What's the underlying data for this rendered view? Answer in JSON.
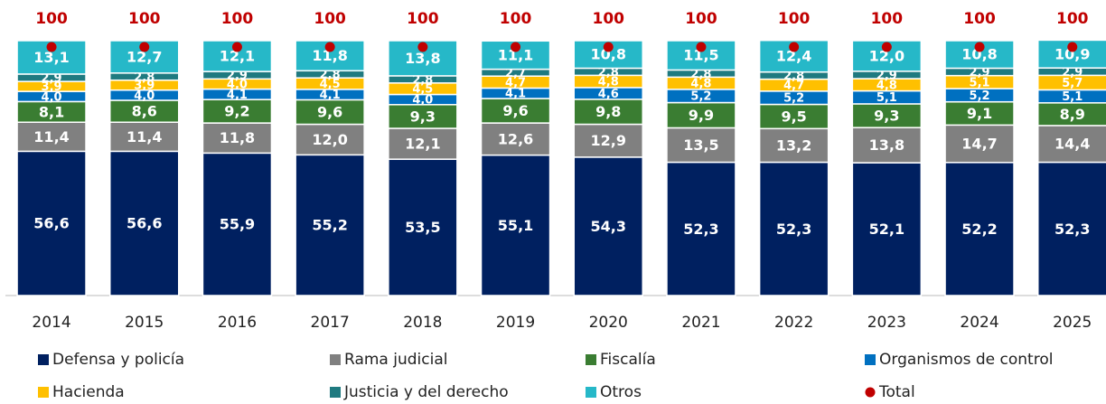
{
  "chart_data": {
    "type": "bar",
    "stacked": true,
    "categories": [
      "2014",
      "2015",
      "2016",
      "2017",
      "2018",
      "2019",
      "2020",
      "2021",
      "2022",
      "2023",
      "2024",
      "2025"
    ],
    "ylim": [
      0,
      100
    ],
    "series": [
      {
        "name": "Defensa y policía",
        "color": "#002060",
        "values": [
          56.6,
          56.6,
          55.9,
          55.2,
          53.5,
          55.1,
          54.3,
          52.3,
          52.3,
          52.1,
          52.2,
          52.3
        ],
        "value_labels": [
          "56,6",
          "56,6",
          "55,9",
          "55,2",
          "53,5",
          "55,1",
          "54,3",
          "52,3",
          "52,3",
          "52,1",
          "52,2",
          "52,3"
        ]
      },
      {
        "name": "Rama judicial",
        "color": "#808080",
        "values": [
          11.4,
          11.4,
          11.8,
          12.0,
          12.1,
          12.6,
          12.9,
          13.5,
          13.2,
          13.8,
          14.7,
          14.4
        ],
        "value_labels": [
          "11,4",
          "11,4",
          "11,8",
          "12,0",
          "12,1",
          "12,6",
          "12,9",
          "13,5",
          "13,2",
          "13,8",
          "14,7",
          "14,4"
        ]
      },
      {
        "name": "Fiscalía",
        "color": "#3a7d32",
        "values": [
          8.1,
          8.6,
          9.2,
          9.6,
          9.3,
          9.6,
          9.8,
          9.9,
          9.5,
          9.3,
          9.1,
          8.9
        ],
        "value_labels": [
          "8,1",
          "8,6",
          "9,2",
          "9,6",
          "9,3",
          "9,6",
          "9,8",
          "9,9",
          "9,5",
          "9,3",
          "9,1",
          "8,9"
        ]
      },
      {
        "name": "Organismos de control",
        "color": "#0070c0",
        "values": [
          4.0,
          4.0,
          4.1,
          4.1,
          4.0,
          4.1,
          4.6,
          5.2,
          5.2,
          5.1,
          5.2,
          5.1
        ],
        "value_labels": [
          "4,0",
          "4,0",
          "4,1",
          "4,1",
          "4,0",
          "4,1",
          "4,6",
          "5,2",
          "5,2",
          "5,1",
          "5,2",
          "5,1"
        ]
      },
      {
        "name": "Hacienda",
        "color": "#ffc000",
        "values": [
          3.9,
          3.9,
          4.0,
          4.5,
          4.5,
          4.7,
          4.8,
          4.8,
          4.7,
          4.8,
          5.1,
          5.7
        ],
        "value_labels": [
          "3,9",
          "3,9",
          "4,0",
          "4,5",
          "4,5",
          "4,7",
          "4,8",
          "4,8",
          "4,7",
          "4,8",
          "5,1",
          "5,7"
        ]
      },
      {
        "name": "Justicia y del derecho",
        "color": "#1f7a80",
        "values": [
          2.9,
          2.8,
          2.9,
          2.8,
          2.8,
          2.7,
          2.8,
          2.8,
          2.8,
          2.9,
          2.9,
          2.9
        ],
        "value_labels": [
          "2,9",
          "2,8",
          "2,9",
          "2,8",
          "2,8",
          "2,7",
          "2,8",
          "2,8",
          "2,8",
          "2,9",
          "2,9",
          "2,9"
        ]
      },
      {
        "name": "Otros",
        "color": "#26b8c8",
        "values": [
          13.1,
          12.7,
          12.1,
          11.8,
          13.8,
          11.1,
          10.8,
          11.5,
          12.4,
          12.0,
          10.8,
          10.9
        ],
        "value_labels": [
          "13,1",
          "12,7",
          "12,1",
          "11,8",
          "13,8",
          "11,1",
          "10,8",
          "11,5",
          "12,4",
          "12,0",
          "10,8",
          "10,9"
        ]
      }
    ],
    "total": {
      "name": "Total",
      "color": "#c00000",
      "values": [
        100,
        100,
        100,
        100,
        100,
        100,
        100,
        100,
        100,
        100,
        100,
        100
      ]
    }
  }
}
